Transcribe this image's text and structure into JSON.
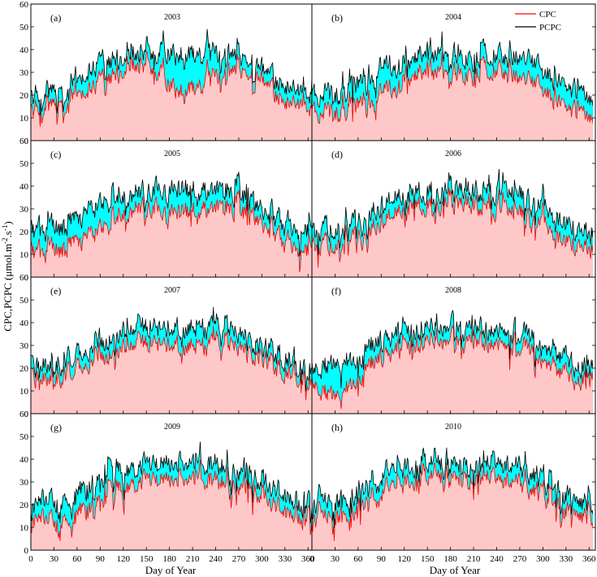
{
  "chart_data": {
    "type": "area",
    "description_axes": {
      "xlabel": "Day of Year",
      "ylabel": "CPC,PCPC (μmol.m-2.s-1)",
      "xlim": [
        0,
        365
      ],
      "ylim": [
        0,
        60
      ],
      "x_ticks": [
        0,
        30,
        60,
        90,
        120,
        150,
        180,
        210,
        240,
        270,
        300,
        330,
        360
      ],
      "y_ticks": [
        0,
        10,
        20,
        30,
        40,
        50,
        60
      ]
    },
    "legend": {
      "position": "top-right",
      "entries": [
        {
          "name": "CPC",
          "color": "#ff0000"
        },
        {
          "name": "PCPC",
          "color": "#000000"
        }
      ]
    },
    "colors": {
      "cpc_fill": "#ffc8c8",
      "gap_fill": "#00ffff",
      "cpc_line": "#ff0000",
      "pcpc_line": "#000000"
    },
    "panels": [
      {
        "label": "(a)",
        "year": "2003",
        "pcpc_anchor_days": [
          0,
          15,
          30,
          45,
          60,
          75,
          90,
          105,
          120,
          135,
          150,
          165,
          180,
          195,
          210,
          225,
          240,
          255,
          270,
          285,
          300,
          315,
          330,
          345,
          365
        ],
        "pcpc_anchor_values": [
          20,
          21,
          22,
          23,
          25,
          30,
          33,
          35,
          37,
          38,
          39,
          38,
          38,
          38,
          38,
          38,
          37,
          37,
          37,
          35,
          30,
          27,
          24,
          21,
          20
        ],
        "cpc_anchor_days": [
          0,
          15,
          30,
          45,
          60,
          75,
          90,
          105,
          120,
          135,
          150,
          165,
          180,
          195,
          210,
          225,
          240,
          255,
          270,
          285,
          300,
          315,
          330,
          345,
          365
        ],
        "cpc_anchor_values": [
          14,
          15,
          16,
          17,
          19,
          22,
          25,
          28,
          31,
          33,
          33,
          30,
          24,
          22,
          23,
          25,
          27,
          29,
          31,
          29,
          25,
          21,
          17,
          15,
          14
        ]
      },
      {
        "label": "(b)",
        "year": "2004",
        "pcpc_anchor_days": [
          0,
          15,
          30,
          45,
          60,
          75,
          90,
          105,
          120,
          135,
          150,
          165,
          180,
          195,
          210,
          225,
          240,
          255,
          270,
          285,
          300,
          315,
          330,
          345,
          365
        ],
        "pcpc_anchor_values": [
          19,
          20,
          21,
          23,
          25,
          29,
          32,
          34,
          35,
          37,
          38,
          38,
          38,
          38,
          38,
          38,
          38,
          37,
          37,
          34,
          30,
          27,
          24,
          21,
          19
        ],
        "cpc_anchor_days": [
          0,
          15,
          30,
          45,
          60,
          75,
          90,
          105,
          120,
          135,
          150,
          165,
          180,
          195,
          210,
          225,
          240,
          255,
          270,
          285,
          300,
          315,
          330,
          345,
          365
        ],
        "cpc_anchor_values": [
          12,
          12,
          13,
          14,
          16,
          18,
          21,
          24,
          27,
          29,
          30,
          30,
          30,
          30,
          31,
          31,
          31,
          30,
          28,
          25,
          22,
          18,
          15,
          12,
          11
        ]
      },
      {
        "label": "(c)",
        "year": "2005",
        "pcpc_anchor_days": [
          0,
          15,
          30,
          45,
          60,
          75,
          90,
          105,
          120,
          135,
          150,
          165,
          180,
          195,
          210,
          225,
          240,
          255,
          270,
          285,
          300,
          315,
          330,
          345,
          365
        ],
        "pcpc_anchor_values": [
          20,
          21,
          22,
          23,
          25,
          28,
          31,
          34,
          36,
          37,
          38,
          38,
          38,
          38,
          38,
          38,
          38,
          37,
          36,
          34,
          30,
          27,
          24,
          21,
          20
        ],
        "cpc_anchor_days": [
          0,
          15,
          30,
          45,
          60,
          75,
          90,
          105,
          120,
          135,
          150,
          165,
          180,
          195,
          210,
          225,
          240,
          255,
          270,
          285,
          300,
          315,
          330,
          345,
          365
        ],
        "cpc_anchor_values": [
          11,
          11,
          12,
          13,
          15,
          17,
          20,
          24,
          28,
          30,
          31,
          29,
          28,
          28,
          29,
          30,
          30,
          30,
          29,
          27,
          24,
          20,
          16,
          13,
          11
        ]
      },
      {
        "label": "(d)",
        "year": "2006",
        "pcpc_anchor_days": [
          0,
          15,
          30,
          45,
          60,
          75,
          90,
          105,
          120,
          135,
          150,
          165,
          180,
          195,
          210,
          225,
          240,
          255,
          270,
          285,
          300,
          315,
          330,
          345,
          365
        ],
        "pcpc_anchor_values": [
          20,
          21,
          22,
          23,
          25,
          28,
          31,
          34,
          35,
          37,
          38,
          38,
          38,
          38,
          38,
          38,
          38,
          37,
          36,
          34,
          30,
          27,
          24,
          21,
          20
        ],
        "cpc_anchor_days": [
          0,
          15,
          30,
          45,
          60,
          75,
          90,
          105,
          120,
          135,
          150,
          165,
          180,
          195,
          210,
          225,
          240,
          255,
          270,
          285,
          300,
          315,
          330,
          345,
          365
        ],
        "cpc_anchor_values": [
          14,
          14,
          15,
          16,
          18,
          21,
          24,
          27,
          29,
          31,
          32,
          32,
          32,
          32,
          32,
          31,
          30,
          29,
          28,
          26,
          23,
          19,
          16,
          14,
          13
        ]
      },
      {
        "label": "(e)",
        "year": "2007",
        "pcpc_anchor_days": [
          0,
          15,
          30,
          45,
          60,
          75,
          90,
          105,
          120,
          135,
          150,
          165,
          180,
          195,
          210,
          225,
          240,
          255,
          270,
          285,
          300,
          315,
          330,
          345,
          365
        ],
        "pcpc_anchor_values": [
          20,
          21,
          22,
          23,
          25,
          28,
          31,
          34,
          36,
          37,
          38,
          38,
          38,
          38,
          38,
          38,
          37,
          37,
          36,
          34,
          30,
          27,
          24,
          21,
          20
        ],
        "cpc_anchor_days": [
          0,
          15,
          30,
          45,
          60,
          75,
          90,
          105,
          120,
          135,
          150,
          165,
          180,
          195,
          210,
          225,
          240,
          255,
          270,
          285,
          300,
          315,
          330,
          345,
          365
        ],
        "cpc_anchor_values": [
          15,
          15,
          16,
          17,
          19,
          22,
          25,
          27,
          29,
          30,
          31,
          31,
          31,
          30,
          30,
          30,
          30,
          30,
          30,
          28,
          25,
          21,
          18,
          16,
          15
        ]
      },
      {
        "label": "(f)",
        "year": "2008",
        "pcpc_anchor_days": [
          0,
          15,
          30,
          45,
          60,
          75,
          90,
          105,
          120,
          135,
          150,
          165,
          180,
          195,
          210,
          225,
          240,
          255,
          270,
          285,
          300,
          315,
          330,
          345,
          365
        ],
        "pcpc_anchor_values": [
          19,
          20,
          21,
          23,
          25,
          28,
          31,
          34,
          36,
          37,
          38,
          38,
          38,
          38,
          38,
          38,
          38,
          37,
          36,
          34,
          30,
          27,
          24,
          21,
          19
        ],
        "cpc_anchor_days": [
          0,
          15,
          30,
          45,
          60,
          75,
          90,
          105,
          120,
          135,
          150,
          165,
          180,
          195,
          210,
          225,
          240,
          255,
          270,
          285,
          300,
          315,
          330,
          345,
          365
        ],
        "cpc_anchor_values": [
          13,
          9,
          7,
          11,
          16,
          20,
          24,
          27,
          29,
          31,
          32,
          32,
          32,
          32,
          32,
          32,
          32,
          31,
          30,
          28,
          24,
          20,
          17,
          15,
          14
        ]
      },
      {
        "label": "(g)",
        "year": "2009",
        "pcpc_anchor_days": [
          0,
          15,
          30,
          45,
          60,
          75,
          90,
          105,
          120,
          135,
          150,
          165,
          180,
          195,
          210,
          225,
          240,
          255,
          270,
          285,
          300,
          315,
          330,
          345,
          365
        ],
        "pcpc_anchor_values": [
          20,
          21,
          22,
          23,
          25,
          28,
          31,
          34,
          36,
          37,
          38,
          38,
          38,
          38,
          38,
          38,
          38,
          37,
          36,
          34,
          30,
          27,
          24,
          21,
          20
        ],
        "cpc_anchor_days": [
          0,
          15,
          30,
          45,
          60,
          75,
          90,
          105,
          120,
          135,
          150,
          165,
          180,
          195,
          210,
          225,
          240,
          255,
          270,
          285,
          300,
          315,
          330,
          345,
          365
        ],
        "cpc_anchor_values": [
          14,
          13,
          13,
          14,
          16,
          19,
          22,
          25,
          28,
          30,
          31,
          31,
          31,
          31,
          31,
          31,
          31,
          30,
          29,
          27,
          24,
          20,
          17,
          15,
          14
        ]
      },
      {
        "label": "(h)",
        "year": "2010",
        "pcpc_anchor_days": [
          0,
          15,
          30,
          45,
          60,
          75,
          90,
          105,
          120,
          135,
          150,
          165,
          180,
          195,
          210,
          225,
          240,
          255,
          270,
          285,
          300,
          315,
          330,
          345,
          365
        ],
        "pcpc_anchor_values": [
          20,
          21,
          22,
          23,
          25,
          28,
          31,
          34,
          36,
          37,
          38,
          38,
          38,
          38,
          38,
          38,
          38,
          37,
          36,
          34,
          30,
          27,
          24,
          21,
          20
        ],
        "cpc_anchor_days": [
          0,
          15,
          30,
          45,
          60,
          75,
          90,
          105,
          120,
          135,
          150,
          165,
          180,
          195,
          210,
          225,
          240,
          255,
          270,
          285,
          300,
          315,
          330,
          345,
          365
        ],
        "cpc_anchor_values": [
          14,
          14,
          15,
          16,
          18,
          21,
          24,
          27,
          29,
          31,
          32,
          32,
          32,
          32,
          32,
          32,
          31,
          30,
          29,
          27,
          24,
          20,
          17,
          15,
          14
        ]
      }
    ]
  },
  "labels": {
    "xlabel": "Day of Year",
    "ylabel_main": "CPC,PCPC (μmol.m",
    "ylabel_sup1": "-2",
    "ylabel_mid": ".s",
    "ylabel_sup2": "-1",
    "ylabel_end": ")",
    "legend_cpc": "CPC",
    "legend_pcpc": "PCPC"
  }
}
